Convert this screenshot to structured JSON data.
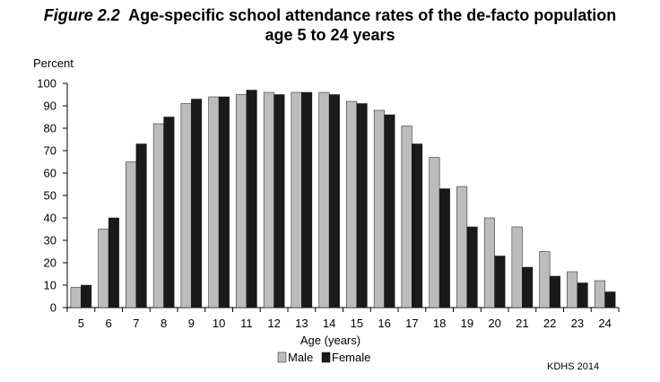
{
  "title": {
    "figure_label": "Figure 2.2",
    "line1": "Age-specific school attendance rates of the de-facto population",
    "line2": "age 5 to 24 years"
  },
  "source": "KDHS 2014",
  "colors": {
    "male": "#bcbcbc",
    "female": "#1a1a1a",
    "axis": "#000000"
  },
  "chart_data": {
    "type": "bar",
    "title": "Age-specific school attendance rates of the de-facto population age 5 to 24 years",
    "ylabel": "Percent",
    "xlabel": "Age (years)",
    "ylim": [
      0,
      100
    ],
    "yticks": [
      0,
      10,
      20,
      30,
      40,
      50,
      60,
      70,
      80,
      90,
      100
    ],
    "grid": false,
    "legend_position": "bottom",
    "categories": [
      "5",
      "6",
      "7",
      "8",
      "9",
      "10",
      "11",
      "12",
      "13",
      "14",
      "15",
      "16",
      "17",
      "18",
      "19",
      "20",
      "21",
      "22",
      "23",
      "24"
    ],
    "series": [
      {
        "name": "Male",
        "values": [
          9,
          35,
          65,
          82,
          91,
          94,
          95,
          96,
          96,
          96,
          92,
          88,
          81,
          67,
          54,
          40,
          36,
          25,
          16,
          12
        ]
      },
      {
        "name": "Female",
        "values": [
          10,
          40,
          73,
          85,
          93,
          94,
          97,
          95,
          96,
          95,
          91,
          86,
          73,
          53,
          36,
          23,
          18,
          14,
          11,
          7
        ]
      }
    ]
  }
}
